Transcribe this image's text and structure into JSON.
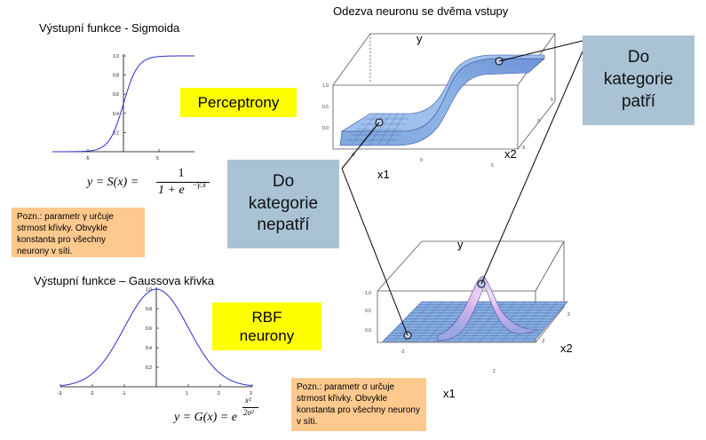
{
  "sigmoid_title": "Výstupní funkce - Sigmoida",
  "gauss_title": "Výstupní funkce – Gaussova křivka",
  "surface_title": "Odezva neuronu se dvěma vstupy",
  "perceptrony_label": "Perceptrony",
  "rbf_label": "RBF\nneurony",
  "do_kategorie_patri": "Do\nkategorie\npatří",
  "do_kategorie_nepatri": "Do\nkategorie\nnepatří",
  "note_sigmoid": "Pozn.: parametr γ určuje strmost křivky. Obvykle konstanta pro všechny neurony v síti.",
  "note_gauss": "Pozn.: parametr σ určuje strmost křivky. Obvykle konstanta pro všechny neurony v síti.",
  "formula_sigmoid": {
    "lhs": "y = S(x) = ",
    "num": "1",
    "den": "1 + e",
    "exp": "−γ.x"
  },
  "formula_gauss": {
    "lhs": "y = G(x) = e",
    "exp_num": "x²",
    "exp_den": "2σ²"
  },
  "surface_axes": {
    "y": "y",
    "x1": "x1",
    "x2": "x2"
  },
  "chart_data": [
    {
      "type": "line",
      "title": "Výstupní funkce - Sigmoida",
      "function": "sigmoid",
      "xlim": [
        -10,
        10
      ],
      "ylim": [
        0,
        1
      ],
      "x_ticks": [
        "-5",
        "5"
      ],
      "y_ticks": [
        "0.2",
        "0.4",
        "0.6",
        "0.8",
        "1.0"
      ]
    },
    {
      "type": "line",
      "title": "Výstupní funkce – Gaussova křivka",
      "function": "gaussian",
      "xlim": [
        -3,
        3
      ],
      "ylim": [
        0,
        1
      ],
      "x_ticks": [
        "-3",
        "-2",
        "-1",
        "1",
        "2",
        "3"
      ],
      "y_ticks": [
        "0.2",
        "0.4",
        "0.6",
        "0.8",
        "1.0"
      ]
    }
  ],
  "colors": {
    "yellow": "#ffff00",
    "blue_box": "#a9c3d5",
    "note": "#fdc98f",
    "curve": "#2c2cd0"
  }
}
